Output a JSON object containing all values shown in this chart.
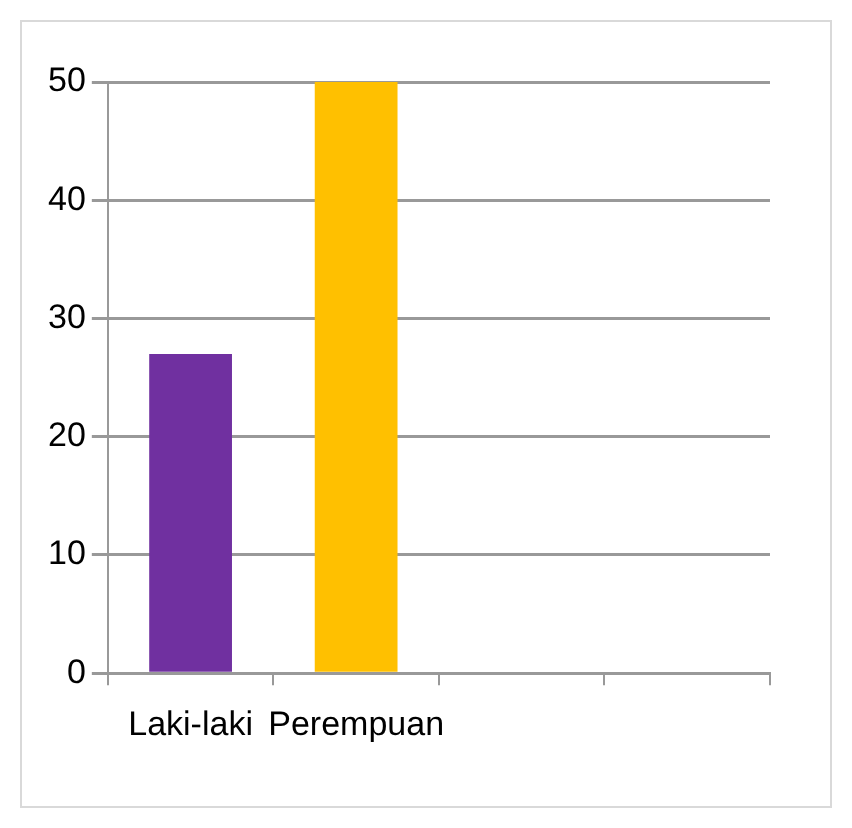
{
  "chart_data": {
    "type": "bar",
    "categories": [
      "Laki-laki",
      "Perempuan",
      null,
      null
    ],
    "values": [
      27,
      50,
      null,
      null
    ],
    "colors": [
      "#7030a0",
      "#ffc000",
      null,
      null
    ],
    "ylim": [
      0,
      50
    ],
    "yticks": [
      0,
      10,
      20,
      30,
      40,
      50
    ],
    "grid": "y",
    "legend": false
  }
}
